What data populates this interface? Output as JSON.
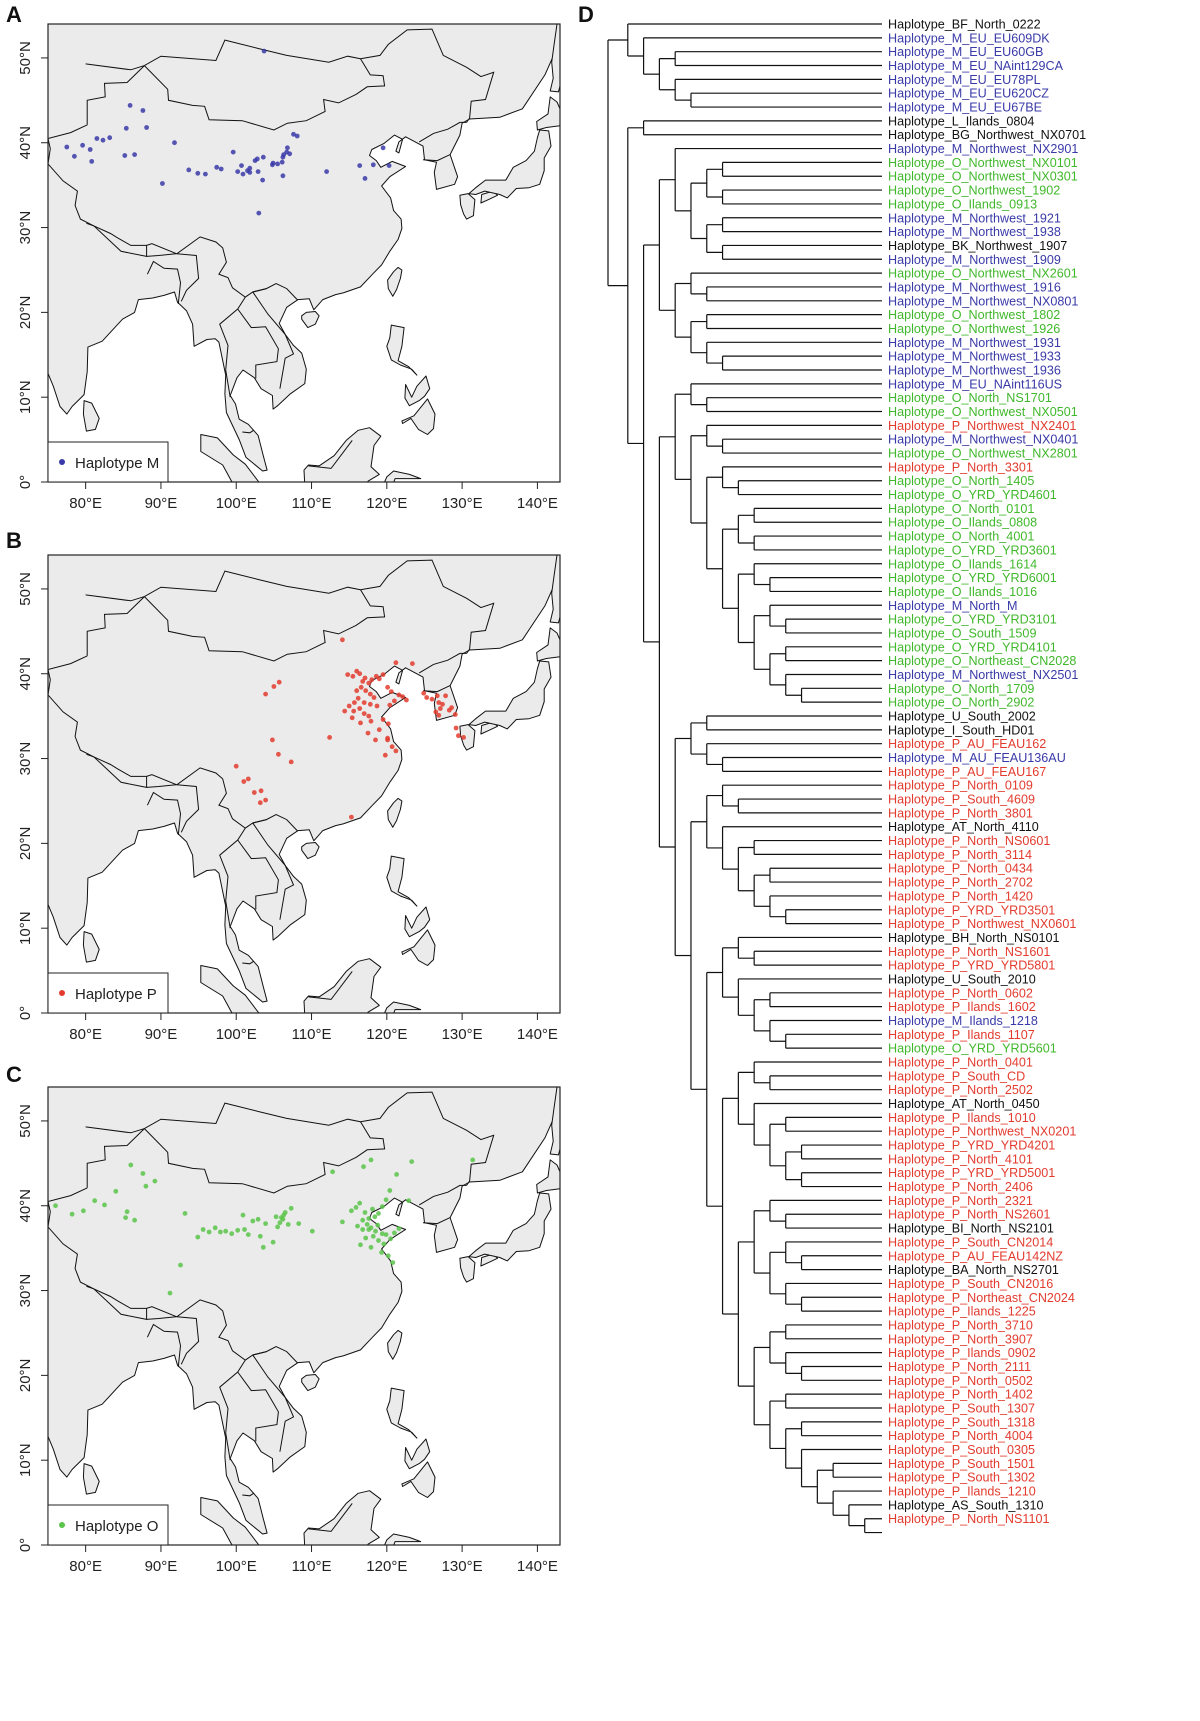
{
  "panels": {
    "A": "A",
    "B": "B",
    "C": "C",
    "D": "D"
  },
  "maps": [
    {
      "id": "A",
      "legend_label": "Haplotype M",
      "color": "#3a3aa8",
      "points": [
        [
          77.5,
          39.5
        ],
        [
          78.5,
          38.4
        ],
        [
          79.6,
          39.7
        ],
        [
          80.6,
          39.2
        ],
        [
          81.5,
          40.5
        ],
        [
          82.3,
          40.3
        ],
        [
          83.2,
          40.6
        ],
        [
          80.8,
          37.8
        ],
        [
          85.9,
          44.4
        ],
        [
          87.6,
          43.8
        ],
        [
          85.4,
          41.7
        ],
        [
          85.2,
          38.5
        ],
        [
          86.5,
          38.6
        ],
        [
          88.1,
          41.8
        ],
        [
          91.8,
          40.0
        ],
        [
          93.7,
          36.8
        ],
        [
          90.2,
          35.2
        ],
        [
          94.9,
          36.4
        ],
        [
          95.9,
          36.3
        ],
        [
          97.4,
          37.1
        ],
        [
          98.0,
          36.9
        ],
        [
          99.6,
          38.9
        ],
        [
          100.2,
          36.6
        ],
        [
          100.9,
          36.3
        ],
        [
          100.7,
          37.3
        ],
        [
          101.5,
          36.7
        ],
        [
          101.8,
          36.5
        ],
        [
          102.5,
          37.9
        ],
        [
          102.8,
          38.1
        ],
        [
          103.6,
          38.3
        ],
        [
          103.5,
          35.6
        ],
        [
          104.9,
          37.6
        ],
        [
          105.5,
          37.5
        ],
        [
          106.1,
          37.7
        ],
        [
          106.2,
          38.3
        ],
        [
          106.3,
          38.6
        ],
        [
          106.7,
          38.9
        ],
        [
          106.8,
          39.4
        ],
        [
          107.6,
          41.0
        ],
        [
          108.1,
          40.8
        ],
        [
          112.0,
          36.6
        ],
        [
          116.4,
          37.3
        ],
        [
          117.1,
          35.8
        ],
        [
          118.2,
          37.4
        ],
        [
          119.5,
          39.4
        ],
        [
          120.3,
          37.3
        ],
        [
          103.0,
          31.7
        ],
        [
          104.8,
          37.4
        ],
        [
          103.7,
          50.8
        ],
        [
          106.2,
          36.1
        ],
        [
          107.1,
          38.7
        ],
        [
          102.9,
          36.6
        ],
        [
          101.8,
          37.0
        ]
      ]
    },
    {
      "id": "B",
      "legend_label": "Haplotype P",
      "color": "#e33b2e",
      "points": [
        [
          114.1,
          44.0
        ],
        [
          114.8,
          39.9
        ],
        [
          115.5,
          39.7
        ],
        [
          116.4,
          40.0
        ],
        [
          116.8,
          39.1
        ],
        [
          117.1,
          39.5
        ],
        [
          117.6,
          38.9
        ],
        [
          118.0,
          39.3
        ],
        [
          118.6,
          39.7
        ],
        [
          119.0,
          39.4
        ],
        [
          119.5,
          39.9
        ],
        [
          116.0,
          38.0
        ],
        [
          116.6,
          38.4
        ],
        [
          117.2,
          38.0
        ],
        [
          117.8,
          37.6
        ],
        [
          118.3,
          37.2
        ],
        [
          116.2,
          37.1
        ],
        [
          117.0,
          36.6
        ],
        [
          117.8,
          36.4
        ],
        [
          118.7,
          36.2
        ],
        [
          116.4,
          35.9
        ],
        [
          117.0,
          35.3
        ],
        [
          117.6,
          35.0
        ],
        [
          115.0,
          36.2
        ],
        [
          115.7,
          36.6
        ],
        [
          114.4,
          35.6
        ],
        [
          115.6,
          35.6
        ],
        [
          115.4,
          34.8
        ],
        [
          116.5,
          34.2
        ],
        [
          117.9,
          34.4
        ],
        [
          119.5,
          34.6
        ],
        [
          120.2,
          34.1
        ],
        [
          119.0,
          33.4
        ],
        [
          117.5,
          33.0
        ],
        [
          118.5,
          32.2
        ],
        [
          120.1,
          32.4
        ],
        [
          120.7,
          31.4
        ],
        [
          121.2,
          30.9
        ],
        [
          119.8,
          30.4
        ],
        [
          121.0,
          36.8
        ],
        [
          121.6,
          37.5
        ],
        [
          122.1,
          37.3
        ],
        [
          122.6,
          36.9
        ],
        [
          120.4,
          36.3
        ],
        [
          120.6,
          37.9
        ],
        [
          120.1,
          38.4
        ],
        [
          123.4,
          41.2
        ],
        [
          121.2,
          41.3
        ],
        [
          124.9,
          37.7
        ],
        [
          125.3,
          37.2
        ],
        [
          126.0,
          37.0
        ],
        [
          126.7,
          37.4
        ],
        [
          126.9,
          36.6
        ],
        [
          127.4,
          36.4
        ],
        [
          126.5,
          35.5
        ],
        [
          127.1,
          35.9
        ],
        [
          128.3,
          35.7
        ],
        [
          128.6,
          36.0
        ],
        [
          129.1,
          35.2
        ],
        [
          127.8,
          37.4
        ],
        [
          126.9,
          35.1
        ],
        [
          129.2,
          33.6
        ],
        [
          129.5,
          32.7
        ],
        [
          130.2,
          32.5
        ],
        [
          105.0,
          38.5
        ],
        [
          105.7,
          39.0
        ],
        [
          103.9,
          37.6
        ],
        [
          100.0,
          29.1
        ],
        [
          101.6,
          27.6
        ],
        [
          101.0,
          27.3
        ],
        [
          102.4,
          26.0
        ],
        [
          103.3,
          26.2
        ],
        [
          103.2,
          24.8
        ],
        [
          103.9,
          25.1
        ],
        [
          105.6,
          30.5
        ],
        [
          104.8,
          32.2
        ],
        [
          107.3,
          29.6
        ],
        [
          112.4,
          32.5
        ],
        [
          115.3,
          23.1
        ],
        [
          120.1,
          32.2
        ],
        [
          116.0,
          40.3
        ]
      ]
    },
    {
      "id": "C",
      "legend_label": "Haplotype O",
      "color": "#5bc44a",
      "points": [
        [
          76.0,
          40.0
        ],
        [
          78.2,
          39.0
        ],
        [
          79.7,
          39.4
        ],
        [
          81.2,
          40.6
        ],
        [
          82.5,
          40.1
        ],
        [
          84.0,
          41.7
        ],
        [
          85.5,
          39.3
        ],
        [
          86.0,
          44.8
        ],
        [
          87.6,
          43.8
        ],
        [
          88.0,
          42.3
        ],
        [
          89.2,
          42.9
        ],
        [
          85.3,
          38.6
        ],
        [
          86.5,
          38.3
        ],
        [
          91.2,
          29.7
        ],
        [
          94.9,
          36.3
        ],
        [
          95.6,
          37.2
        ],
        [
          96.4,
          36.9
        ],
        [
          97.2,
          37.4
        ],
        [
          97.9,
          36.9
        ],
        [
          98.6,
          37.0
        ],
        [
          99.4,
          36.7
        ],
        [
          100.2,
          37.1
        ],
        [
          100.9,
          38.9
        ],
        [
          101.6,
          36.6
        ],
        [
          102.2,
          38.2
        ],
        [
          102.9,
          38.4
        ],
        [
          103.2,
          36.4
        ],
        [
          103.9,
          37.9
        ],
        [
          104.9,
          35.7
        ],
        [
          105.5,
          37.5
        ],
        [
          105.8,
          38.0
        ],
        [
          106.0,
          38.6
        ],
        [
          106.3,
          38.9
        ],
        [
          106.5,
          39.2
        ],
        [
          106.2,
          38.4
        ],
        [
          106.9,
          37.8
        ],
        [
          107.3,
          39.7
        ],
        [
          108.3,
          37.9
        ],
        [
          110.1,
          37.0
        ],
        [
          114.1,
          38.1
        ],
        [
          115.3,
          39.4
        ],
        [
          115.9,
          39.8
        ],
        [
          116.4,
          40.3
        ],
        [
          117.1,
          39.2
        ],
        [
          117.6,
          38.5
        ],
        [
          118.1,
          39.6
        ],
        [
          118.4,
          38.7
        ],
        [
          118.9,
          39.1
        ],
        [
          119.4,
          39.9
        ],
        [
          116.1,
          37.6
        ],
        [
          116.8,
          37.2
        ],
        [
          117.4,
          37.8
        ],
        [
          117.9,
          37.4
        ],
        [
          118.5,
          37.0
        ],
        [
          118.2,
          36.4
        ],
        [
          118.9,
          35.9
        ],
        [
          119.4,
          36.7
        ],
        [
          119.6,
          35.5
        ],
        [
          120.5,
          36.1
        ],
        [
          117.2,
          36.2
        ],
        [
          116.5,
          35.4
        ],
        [
          117.9,
          35.1
        ],
        [
          116.8,
          38.3
        ],
        [
          117.6,
          37.2
        ],
        [
          118.8,
          37.7
        ],
        [
          119.9,
          36.6
        ],
        [
          121.0,
          36.8
        ],
        [
          121.6,
          37.3
        ],
        [
          119.3,
          34.5
        ],
        [
          120.8,
          33.3
        ],
        [
          120.4,
          41.8
        ],
        [
          121.3,
          43.7
        ],
        [
          119.9,
          40.7
        ],
        [
          123.3,
          45.2
        ],
        [
          131.4,
          45.4
        ],
        [
          103.6,
          35.1
        ],
        [
          101.1,
          37.2
        ],
        [
          93.2,
          39.1
        ],
        [
          92.6,
          33.0
        ],
        [
          105.3,
          38.7
        ],
        [
          112.8,
          44.0
        ],
        [
          116.9,
          44.6
        ],
        [
          117.9,
          45.4
        ],
        [
          120.2,
          34.1
        ],
        [
          122.9,
          40.6
        ]
      ]
    }
  ],
  "map_axes": {
    "x_ticks": [
      "80°E",
      "90°E",
      "100°E",
      "110°E",
      "120°E",
      "130°E",
      "140°E"
    ],
    "y_ticks": [
      "0°",
      "10°N",
      "20°N",
      "30°N",
      "40°N",
      "50°N"
    ]
  },
  "tree_colors": {
    "M": "#3a3aa8",
    "O": "#40b82b",
    "P": "#e33b2e",
    "other": "#111111"
  },
  "tree_leaves": [
    [
      "Haplotype_BF_North_0222",
      "other"
    ],
    [
      "Haplotype_M_EU_EU609DK",
      "M"
    ],
    [
      "Haplotype_M_EU_EU60GB",
      "M"
    ],
    [
      "Haplotype_M_EU_NAint129CA",
      "M"
    ],
    [
      "Haplotype_M_EU_EU78PL",
      "M"
    ],
    [
      "Haplotype_M_EU_EU620CZ",
      "M"
    ],
    [
      "Haplotype_M_EU_EU67BE",
      "M"
    ],
    [
      "Haplotype_L_Ilands_0804",
      "other"
    ],
    [
      "Haplotype_BG_Northwest_NX0701",
      "other"
    ],
    [
      "Haplotype_M_Northwest_NX2901",
      "M"
    ],
    [
      "Haplotype_O_Northwest_NX0101",
      "O"
    ],
    [
      "Haplotype_O_Northwest_NX0301",
      "O"
    ],
    [
      "Haplotype_O_Northwest_1902",
      "O"
    ],
    [
      "Haplotype_O_Ilands_0913",
      "O"
    ],
    [
      "Haplotype_M_Northwest_1921",
      "M"
    ],
    [
      "Haplotype_M_Northwest_1938",
      "M"
    ],
    [
      "Haplotype_BK_Northwest_1907",
      "other"
    ],
    [
      "Haplotype_M_Northwest_1909",
      "M"
    ],
    [
      "Haplotype_O_Northwest_NX2601",
      "O"
    ],
    [
      "Haplotype_M_Northwest_1916",
      "M"
    ],
    [
      "Haplotype_M_Northwest_NX0801",
      "M"
    ],
    [
      "Haplotype_O_Northwest_1802",
      "O"
    ],
    [
      "Haplotype_O_Northwest_1926",
      "O"
    ],
    [
      "Haplotype_M_Northwest_1931",
      "M"
    ],
    [
      "Haplotype_M_Northwest_1933",
      "M"
    ],
    [
      "Haplotype_M_Northwest_1936",
      "M"
    ],
    [
      "Haplotype_M_EU_NAint116US",
      "M"
    ],
    [
      "Haplotype_O_North_NS1701",
      "O"
    ],
    [
      "Haplotype_O_Northwest_NX0501",
      "O"
    ],
    [
      "Haplotype_P_Northwest_NX2401",
      "P"
    ],
    [
      "Haplotype_M_Northwest_NX0401",
      "M"
    ],
    [
      "Haplotype_O_Northwest_NX2801",
      "O"
    ],
    [
      "Haplotype_P_North_3301",
      "P"
    ],
    [
      "Haplotype_O_North_1405",
      "O"
    ],
    [
      "Haplotype_O_YRD_YRD4601",
      "O"
    ],
    [
      "Haplotype_O_North_0101",
      "O"
    ],
    [
      "Haplotype_O_Ilands_0808",
      "O"
    ],
    [
      "Haplotype_O_North_4001",
      "O"
    ],
    [
      "Haplotype_O_YRD_YRD3601",
      "O"
    ],
    [
      "Haplotype_O_Ilands_1614",
      "O"
    ],
    [
      "Haplotype_O_YRD_YRD6001",
      "O"
    ],
    [
      "Haplotype_O_Ilands_1016",
      "O"
    ],
    [
      "Haplotype_M_North_M",
      "M"
    ],
    [
      "Haplotype_O_YRD_YRD3101",
      "O"
    ],
    [
      "Haplotype_O_South_1509",
      "O"
    ],
    [
      "Haplotype_O_YRD_YRD4101",
      "O"
    ],
    [
      "Haplotype_O_Northeast_CN2028",
      "O"
    ],
    [
      "Haplotype_M_Northwest_NX2501",
      "M"
    ],
    [
      "Haplotype_O_North_1709",
      "O"
    ],
    [
      "Haplotype_O_North_2902",
      "O"
    ],
    [
      "Haplotype_U_South_2002",
      "other"
    ],
    [
      "Haplotype_I_South_HD01",
      "other"
    ],
    [
      "Haplotype_P_AU_FEAU162",
      "P"
    ],
    [
      "Haplotype_M_AU_FEAU136AU",
      "M"
    ],
    [
      "Haplotype_P_AU_FEAU167",
      "P"
    ],
    [
      "Haplotype_P_North_0109",
      "P"
    ],
    [
      "Haplotype_P_South_4609",
      "P"
    ],
    [
      "Haplotype_P_North_3801",
      "P"
    ],
    [
      "Haplotype_AT_North_4110",
      "other"
    ],
    [
      "Haplotype_P_North_NS0601",
      "P"
    ],
    [
      "Haplotype_P_North_3114",
      "P"
    ],
    [
      "Haplotype_P_North_0434",
      "P"
    ],
    [
      "Haplotype_P_North_2702",
      "P"
    ],
    [
      "Haplotype_P_North_1420",
      "P"
    ],
    [
      "Haplotype_P_YRD_YRD3501",
      "P"
    ],
    [
      "Haplotype_P_Northwest_NX0601",
      "P"
    ],
    [
      "Haplotype_BH_North_NS0101",
      "other"
    ],
    [
      "Haplotype_P_North_NS1601",
      "P"
    ],
    [
      "Haplotype_P_YRD_YRD5801",
      "P"
    ],
    [
      "Haplotype_U_South_2010",
      "other"
    ],
    [
      "Haplotype_P_North_0602",
      "P"
    ],
    [
      "Haplotype_P_Ilands_1602",
      "P"
    ],
    [
      "Haplotype_M_Ilands_1218",
      "M"
    ],
    [
      "Haplotype_P_Ilands_1107",
      "P"
    ],
    [
      "Haplotype_O_YRD_YRD5601",
      "O"
    ],
    [
      "Haplotype_P_North_0401",
      "P"
    ],
    [
      "Haplotype_P_South_CD",
      "P"
    ],
    [
      "Haplotype_P_North_2502",
      "P"
    ],
    [
      "Haplotype_AT_North_0450",
      "other"
    ],
    [
      "Haplotype_P_Ilands_1010",
      "P"
    ],
    [
      "Haplotype_P_Northwest_NX0201",
      "P"
    ],
    [
      "Haplotype_P_YRD_YRD4201",
      "P"
    ],
    [
      "Haplotype_P_North_4101",
      "P"
    ],
    [
      "Haplotype_P_YRD_YRD5001",
      "P"
    ],
    [
      "Haplotype_P_North_2406",
      "P"
    ],
    [
      "Haplotype_P_North_2321",
      "P"
    ],
    [
      "Haplotype_P_North_NS2601",
      "P"
    ],
    [
      "Haplotype_BI_North_NS2101",
      "other"
    ],
    [
      "Haplotype_P_South_CN2014",
      "P"
    ],
    [
      "Haplotype_P_AU_FEAU142NZ",
      "P"
    ],
    [
      "Haplotype_BA_North_NS2701",
      "other"
    ],
    [
      "Haplotype_P_South_CN2016",
      "P"
    ],
    [
      "Haplotype_P_Northeast_CN2024",
      "P"
    ],
    [
      "Haplotype_P_Ilands_1225",
      "P"
    ],
    [
      "Haplotype_P_North_3710",
      "P"
    ],
    [
      "Haplotype_P_North_3907",
      "P"
    ],
    [
      "Haplotype_P_Ilands_0902",
      "P"
    ],
    [
      "Haplotype_P_North_2111",
      "P"
    ],
    [
      "Haplotype_P_North_0502",
      "P"
    ],
    [
      "Haplotype_P_North_1402",
      "P"
    ],
    [
      "Haplotype_P_South_1307",
      "P"
    ],
    [
      "Haplotype_P_South_1318",
      "P"
    ],
    [
      "Haplotype_P_North_4004",
      "P"
    ],
    [
      "Haplotype_P_South_0305",
      "P"
    ],
    [
      "Haplotype_P_South_1501",
      "P"
    ],
    [
      "Haplotype_P_South_1302",
      "P"
    ],
    [
      "Haplotype_P_Ilands_1210",
      "P"
    ],
    [
      "Haplotype_AS_South_1310",
      "other"
    ],
    [
      "Haplotype_P_North_NS1101",
      "P"
    ]
  ]
}
